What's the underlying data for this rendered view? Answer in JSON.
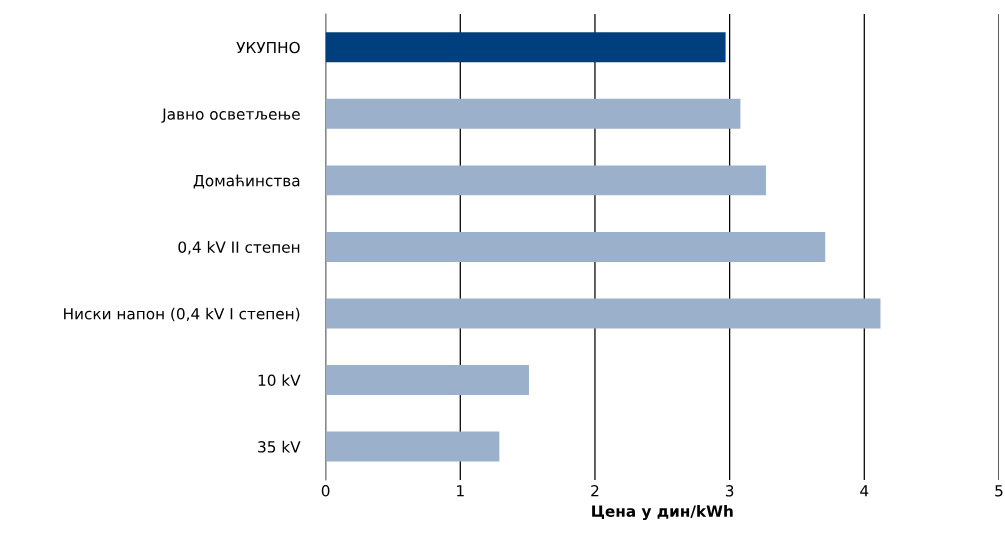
{
  "chart_data": {
    "type": "bar",
    "orientation": "horizontal",
    "xlabel": "Цена у дин/kWh",
    "categories": [
      "УКУПНО",
      "Јавно осветљење",
      "Домаћинства",
      "0,4 kV II степен",
      "Ниски напон (0,4 kV I степен)",
      "10 kV",
      "35 kV"
    ],
    "values": [
      2.97,
      3.08,
      3.27,
      3.71,
      4.12,
      1.51,
      1.29
    ],
    "colors": [
      "#003f7d",
      "#9bb1cb",
      "#9bb1cb",
      "#9bb1cb",
      "#9bb1cb",
      "#9bb1cb",
      "#9bb1cb"
    ],
    "xlim": [
      0,
      5
    ],
    "xticks": [
      0,
      1,
      2,
      3,
      4,
      5
    ],
    "grid": "x",
    "legend": false
  }
}
